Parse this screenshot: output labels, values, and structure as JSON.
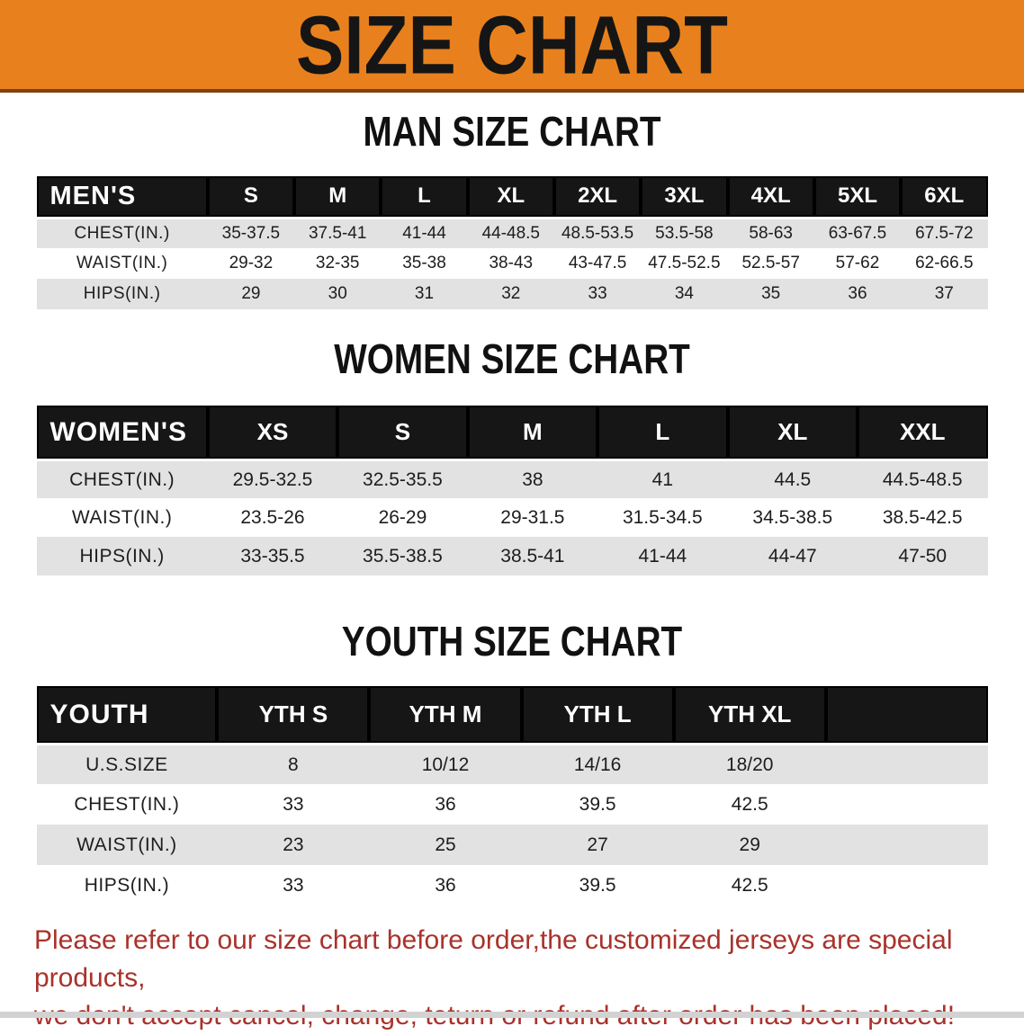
{
  "banner": {
    "title": "SIZE CHART",
    "bg_color": "#e8811d",
    "border_color": "#83400d",
    "text_color": "#151515"
  },
  "sections": [
    {
      "id": "men",
      "heading": "MAN SIZE CHART",
      "table": {
        "header_label": "MEN'S",
        "columns": [
          "S",
          "M",
          "L",
          "XL",
          "2XL",
          "3XL",
          "4XL",
          "5XL",
          "6XL"
        ],
        "rows": [
          {
            "label": "CHEST(IN.)",
            "values": [
              "35-37.5",
              "37.5-41",
              "41-44",
              "44-48.5",
              "48.5-53.5",
              "53.5-58",
              "58-63",
              "63-67.5",
              "67.5-72"
            ]
          },
          {
            "label": "WAIST(IN.)",
            "values": [
              "29-32",
              "32-35",
              "35-38",
              "38-43",
              "43-47.5",
              "47.5-52.5",
              "52.5-57",
              "57-62",
              "62-66.5"
            ]
          },
          {
            "label": "HIPS(IN.)",
            "values": [
              "29",
              "30",
              "31",
              "32",
              "33",
              "34",
              "35",
              "36",
              "37"
            ]
          }
        ]
      }
    },
    {
      "id": "women",
      "heading": "WOMEN SIZE CHART",
      "table": {
        "header_label": "WOMEN'S",
        "columns": [
          "XS",
          "S",
          "M",
          "L",
          "XL",
          "XXL"
        ],
        "rows": [
          {
            "label": "CHEST(IN.)",
            "values": [
              "29.5-32.5",
              "32.5-35.5",
              "38",
              "41",
              "44.5",
              "44.5-48.5"
            ]
          },
          {
            "label": "WAIST(IN.)",
            "values": [
              "23.5-26",
              "26-29",
              "29-31.5",
              "31.5-34.5",
              "34.5-38.5",
              "38.5-42.5"
            ]
          },
          {
            "label": "HIPS(IN.)",
            "values": [
              "33-35.5",
              "35.5-38.5",
              "38.5-41",
              "41-44",
              "44-47",
              "47-50"
            ]
          }
        ]
      }
    },
    {
      "id": "youth",
      "heading": "YOUTH SIZE CHART",
      "table": {
        "header_label": "YOUTH",
        "columns": [
          "YTH S",
          "YTH M",
          "YTH L",
          "YTH XL"
        ],
        "rows": [
          {
            "label": "U.S.SIZE",
            "values": [
              "8",
              "10/12",
              "14/16",
              "18/20"
            ]
          },
          {
            "label": "CHEST(IN.)",
            "values": [
              "33",
              "36",
              "39.5",
              "42.5"
            ]
          },
          {
            "label": "WAIST(IN.)",
            "values": [
              "23",
              "25",
              "27",
              "29"
            ]
          },
          {
            "label": "HIPS(IN.)",
            "values": [
              "33",
              "36",
              "39.5",
              "42.5"
            ]
          }
        ]
      }
    }
  ],
  "disclaimer": {
    "line1": "Please refer to our size chart before order,the customized jerseys are special products,",
    "line2": "we don't accept cancel, change, teturn or refund after order has been placed!",
    "color": "#a9322b"
  }
}
